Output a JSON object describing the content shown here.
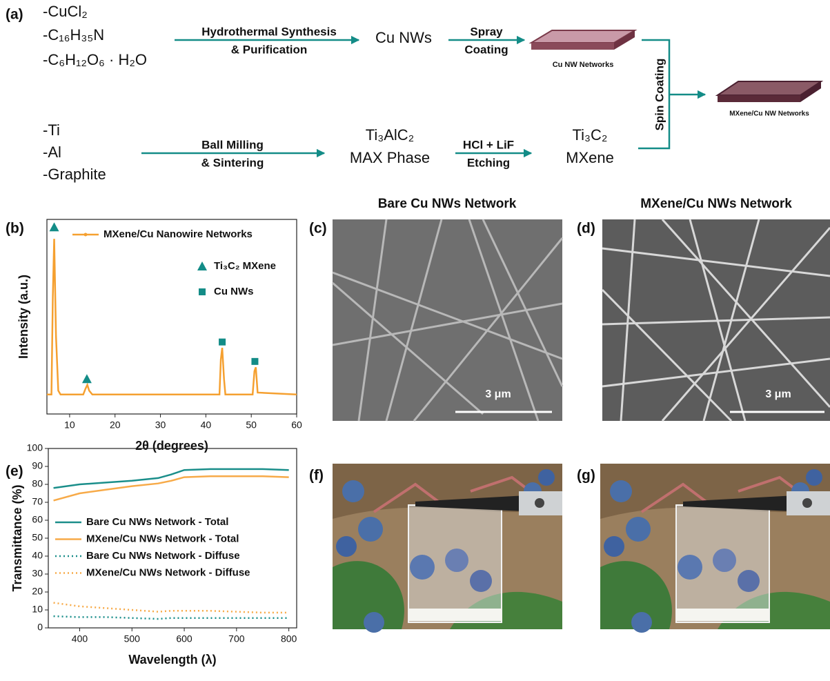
{
  "panel_labels": [
    "(a)",
    "(b)",
    "(c)",
    "(d)",
    "(e)",
    "(f)",
    "(g)"
  ],
  "diagram": {
    "top_reagents": [
      "-CuCl₂",
      "-C₁₆H₃₅N",
      "-C₆H₁₂O₆ · H₂O"
    ],
    "top_step": [
      "Hydrothermal Synthesis",
      "& Purification"
    ],
    "top_product": "Cu NWs",
    "coating_step": [
      "Spray",
      "Coating"
    ],
    "top_film": "Cu NW Networks",
    "bottom_reagents": [
      "-Ti",
      "-Al",
      "-Graphite"
    ],
    "bottom_step": [
      "Ball Milling",
      "& Sintering"
    ],
    "max_phase": [
      "Ti₃AlC₂",
      "MAX Phase"
    ],
    "etch_step": [
      "HCl + LiF",
      "Etching"
    ],
    "mxene": [
      "Ti₃C₂",
      "MXene"
    ],
    "merge_step": "Spin Coating",
    "final_film": "MXene/Cu NW Networks"
  },
  "images": [
    {
      "title": "Bare Cu NWs Network",
      "scale_bar": "3 μm"
    },
    {
      "title": "MXene/Cu NWs Network",
      "scale_bar": "3 μm"
    }
  ],
  "chart_data": [
    {
      "type": "line",
      "xlabel": "2θ (degrees)",
      "ylabel": "Intensity (a.u.)",
      "xlim": [
        5,
        60
      ],
      "xticks": [
        10,
        20,
        30,
        40,
        50,
        60
      ],
      "ylim": [
        0,
        100
      ],
      "legend": "upper right",
      "x": [
        5,
        6,
        6.3,
        6.6,
        7,
        7.5,
        8,
        13,
        13.5,
        13.9,
        14.3,
        15,
        43,
        43.3,
        43.6,
        44,
        44.3,
        50.3,
        50.7,
        51,
        51.4,
        60
      ],
      "series": [
        {
          "name": "MXene/Cu Nanowire Networks",
          "color": "#f5a030",
          "values": [
            10,
            10,
            60,
            90,
            40,
            12,
            10,
            10,
            13,
            15,
            12,
            10,
            10,
            28,
            34,
            18,
            10,
            10,
            22,
            24,
            11,
            10
          ]
        }
      ],
      "markers": [
        {
          "name": "Ti₃C₂ MXene",
          "shape": "triangle",
          "color": "#138c87",
          "x": [
            6.6,
            13.8
          ],
          "y": [
            96,
            18
          ]
        },
        {
          "name": "Cu NWs",
          "shape": "square",
          "color": "#138c87",
          "x": [
            43.6,
            50.8
          ],
          "y": [
            37,
            27
          ]
        }
      ]
    },
    {
      "type": "line",
      "xlabel": "Wavelength (λ)",
      "ylabel": "Transmittance (%)",
      "xlim": [
        340,
        815
      ],
      "xticks": [
        400,
        500,
        600,
        700,
        800
      ],
      "ylim": [
        0,
        100
      ],
      "yticks": [
        0,
        10,
        20,
        30,
        40,
        50,
        60,
        70,
        80,
        90,
        100
      ],
      "legend": "center left",
      "x": [
        350,
        400,
        450,
        500,
        550,
        575,
        600,
        650,
        700,
        750,
        800
      ],
      "series": [
        {
          "name": "Bare Cu NWs Network - Total",
          "color": "#1a8e8a",
          "dash": "solid",
          "values": [
            78,
            80,
            81,
            82,
            83.5,
            85.5,
            88,
            88.5,
            88.5,
            88.5,
            88
          ]
        },
        {
          "name": "MXene/Cu NWs Network - Total",
          "color": "#f7aa48",
          "dash": "solid",
          "values": [
            71,
            75,
            77,
            79,
            80.5,
            82,
            84,
            84.5,
            84.5,
            84.5,
            84
          ]
        },
        {
          "name": "Bare Cu NWs Network - Diffuse",
          "color": "#1a8e8a",
          "dash": "dotted",
          "values": [
            6.5,
            6,
            6,
            5.5,
            5,
            5.5,
            5.5,
            5.5,
            5.5,
            5.5,
            5.5
          ]
        },
        {
          "name": "MXene/Cu NWs Network - Diffuse",
          "color": "#f7aa48",
          "dash": "dotted",
          "values": [
            14,
            12,
            11,
            10,
            9,
            9.5,
            9.5,
            9.5,
            9,
            8.5,
            8.5
          ]
        }
      ]
    }
  ]
}
